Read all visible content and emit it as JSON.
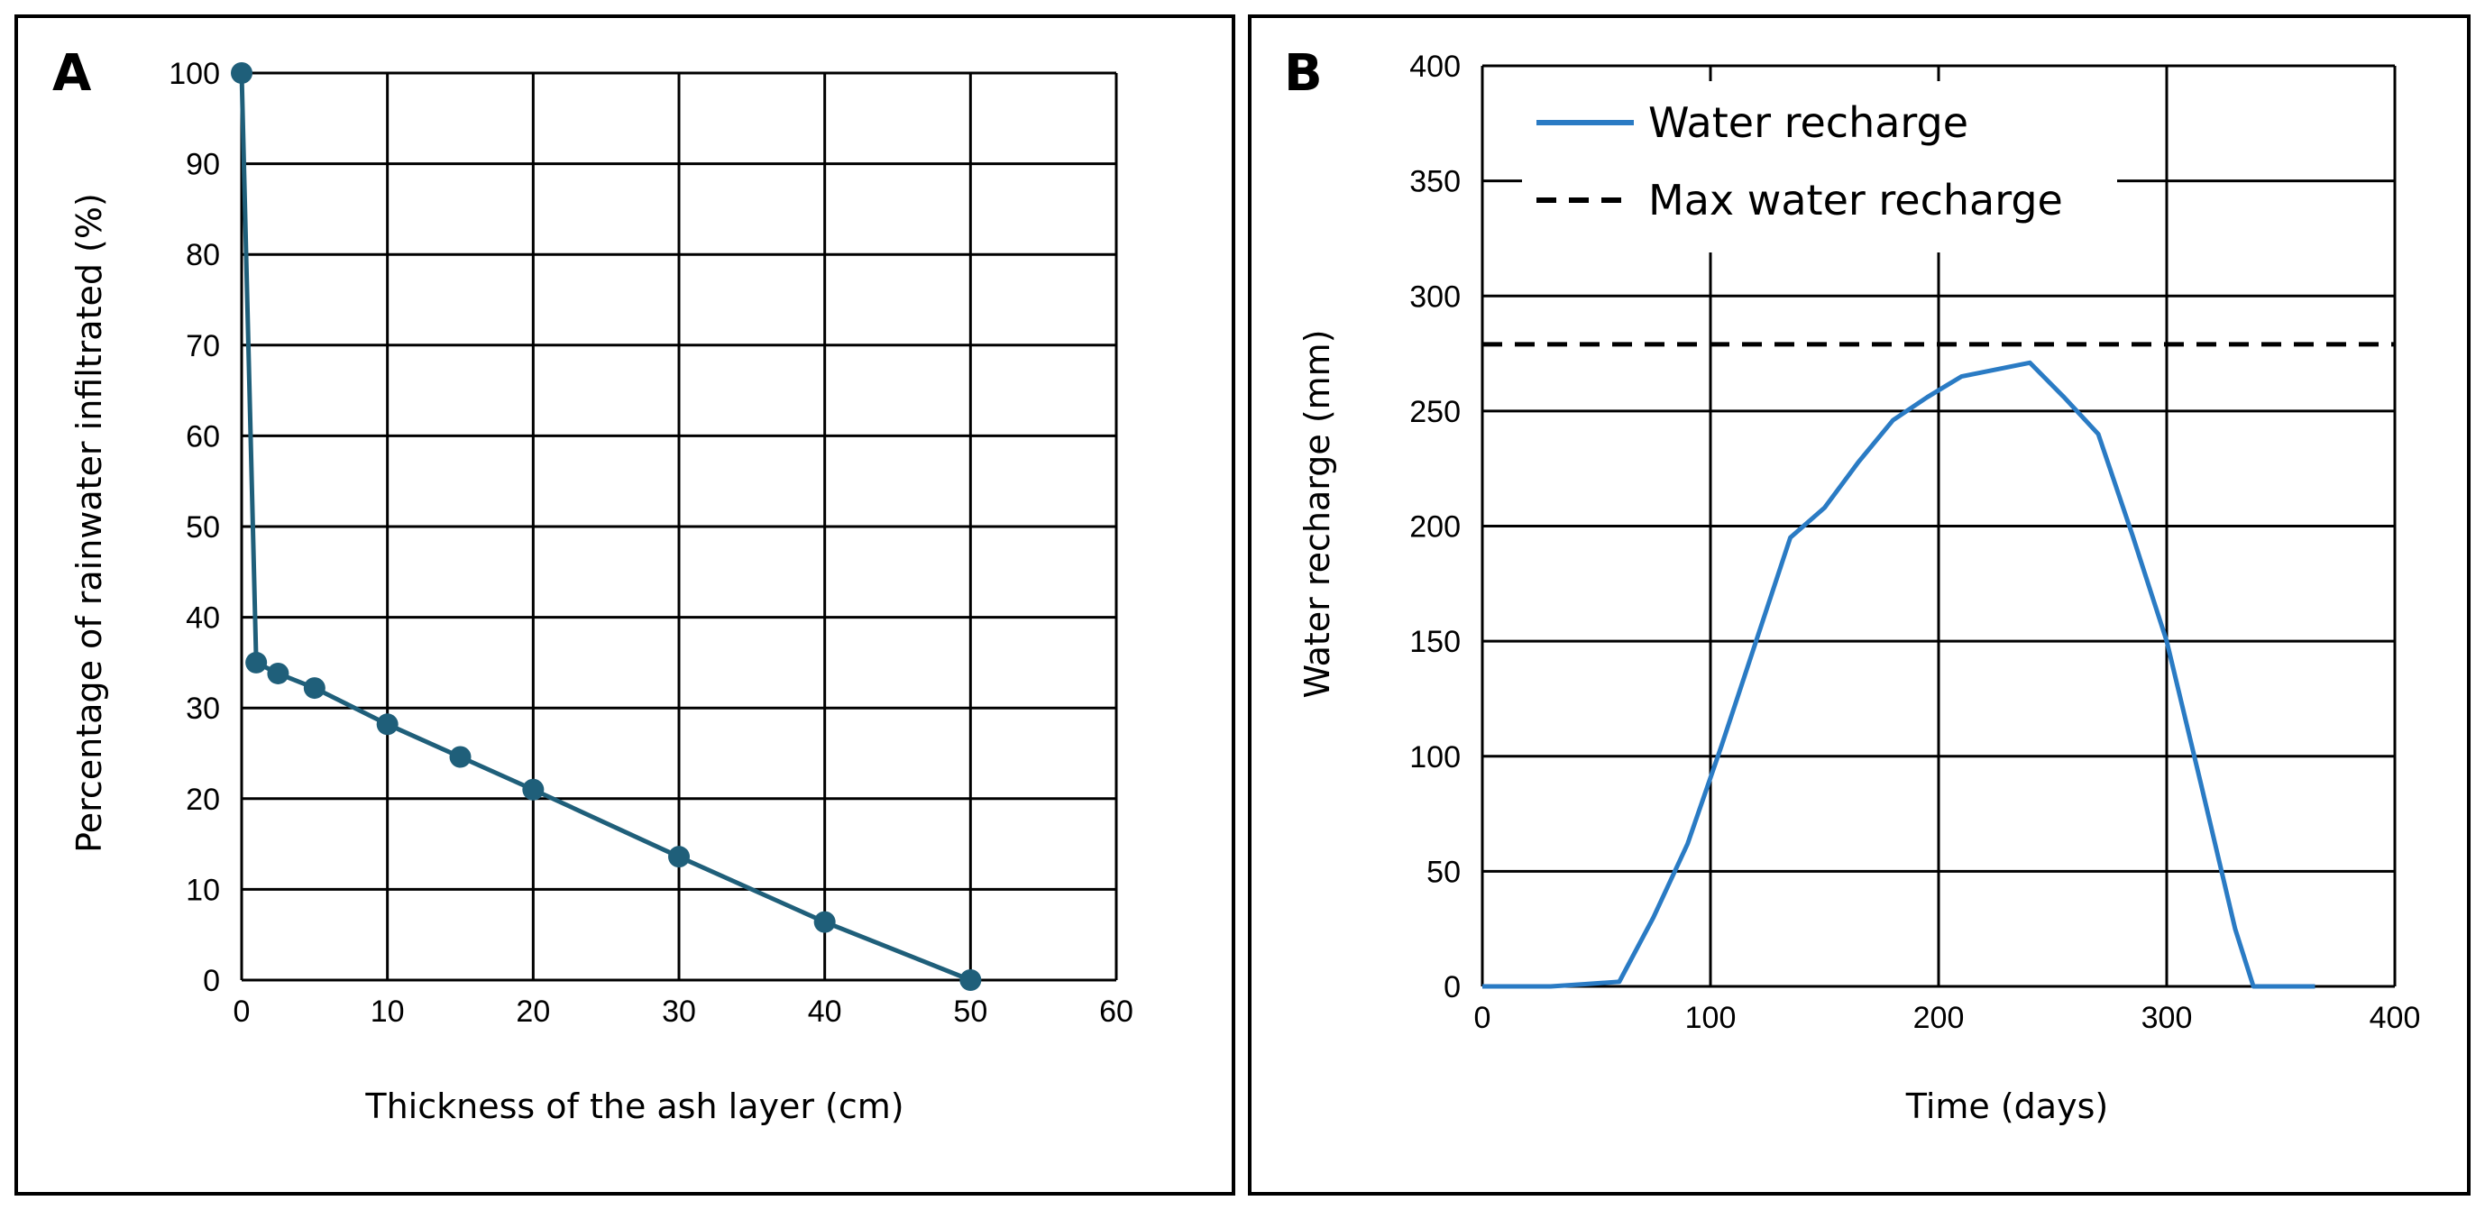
{
  "chart_data": [
    {
      "panel_label": "A",
      "type": "line",
      "markers": true,
      "xlabel": "Thickness of the ash layer (cm)",
      "ylabel": "Percentage of rainwater infiltrated (%)",
      "xlim": [
        0,
        60
      ],
      "ylim": [
        0,
        100
      ],
      "xticks": [
        0,
        10,
        20,
        30,
        40,
        50,
        60
      ],
      "yticks": [
        0,
        10,
        20,
        30,
        40,
        50,
        60,
        70,
        80,
        90,
        100
      ],
      "grid": true,
      "color": "#1f5f7a",
      "series": [
        {
          "name": "Percentage of rainwater infiltrated",
          "x": [
            0,
            1,
            2.5,
            5,
            10,
            15,
            20,
            30,
            40,
            50
          ],
          "y": [
            100,
            35,
            33.8,
            32.2,
            28.2,
            24.6,
            21,
            13.6,
            6.4,
            0
          ]
        }
      ]
    },
    {
      "panel_label": "B",
      "type": "line",
      "markers": false,
      "xlabel": "Time (days)",
      "ylabel": "Water recharge (mm)",
      "xlim": [
        0,
        400
      ],
      "ylim": [
        0,
        400
      ],
      "xticks": [
        0,
        100,
        200,
        300,
        400
      ],
      "yticks": [
        0,
        50,
        100,
        150,
        200,
        250,
        300,
        350,
        400
      ],
      "grid": true,
      "legend_position": "top-left",
      "series": [
        {
          "name": "Water recharge",
          "color": "#2a7bc4",
          "x": [
            0,
            30,
            45,
            60,
            75,
            90,
            105,
            120,
            135,
            150,
            165,
            180,
            195,
            210,
            225,
            240,
            255,
            270,
            285,
            300,
            315,
            330,
            338,
            350,
            365
          ],
          "y": [
            0,
            0,
            1,
            2,
            30,
            62,
            105,
            150,
            195,
            208,
            228,
            246,
            256,
            265,
            268,
            271,
            256,
            240,
            196,
            150,
            88,
            25,
            0,
            0,
            0
          ]
        },
        {
          "name": "Max water recharge",
          "color": "#000000",
          "dashed": true,
          "constant_y": 279
        }
      ]
    }
  ]
}
